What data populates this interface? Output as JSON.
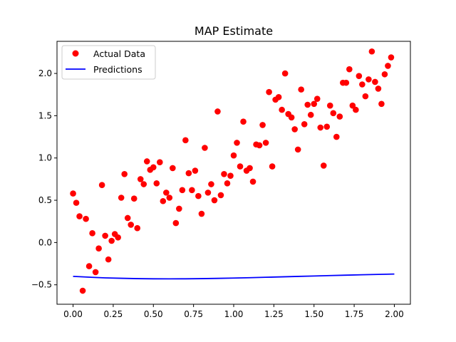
{
  "chart_data": {
    "type": "scatter",
    "title": "MAP Estimate",
    "xlabel": "",
    "ylabel": "",
    "xlim": [
      -0.1,
      2.1
    ],
    "ylim": [
      -0.73,
      2.38
    ],
    "xticks": [
      0.0,
      0.25,
      0.5,
      0.75,
      1.0,
      1.25,
      1.5,
      1.75,
      2.0
    ],
    "xtick_labels": [
      "0.00",
      "0.25",
      "0.50",
      "0.75",
      "1.00",
      "1.25",
      "1.50",
      "1.75",
      "2.00"
    ],
    "yticks": [
      -0.5,
      0.0,
      0.5,
      1.0,
      1.5,
      2.0
    ],
    "ytick_labels": [
      "−0.5",
      "0.0",
      "0.5",
      "1.0",
      "1.5",
      "2.0"
    ],
    "grid": false,
    "legend_position": "upper-left",
    "series": [
      {
        "name": "Actual Data",
        "kind": "scatter",
        "color": "#ff0000",
        "points": [
          [
            0.0,
            0.58
          ],
          [
            0.02,
            0.47
          ],
          [
            0.04,
            0.31
          ],
          [
            0.06,
            -0.57
          ],
          [
            0.08,
            0.28
          ],
          [
            0.1,
            -0.28
          ],
          [
            0.12,
            0.11
          ],
          [
            0.14,
            -0.35
          ],
          [
            0.16,
            -0.07
          ],
          [
            0.18,
            0.68
          ],
          [
            0.2,
            0.08
          ],
          [
            0.22,
            -0.2
          ],
          [
            0.24,
            0.02
          ],
          [
            0.26,
            0.1
          ],
          [
            0.28,
            0.06
          ],
          [
            0.3,
            0.53
          ],
          [
            0.32,
            0.81
          ],
          [
            0.34,
            0.29
          ],
          [
            0.36,
            0.21
          ],
          [
            0.38,
            0.52
          ],
          [
            0.4,
            0.17
          ],
          [
            0.42,
            0.75
          ],
          [
            0.44,
            0.69
          ],
          [
            0.46,
            0.96
          ],
          [
            0.48,
            0.86
          ],
          [
            0.5,
            0.89
          ],
          [
            0.52,
            0.7
          ],
          [
            0.54,
            0.95
          ],
          [
            0.56,
            0.49
          ],
          [
            0.58,
            0.59
          ],
          [
            0.6,
            0.53
          ],
          [
            0.62,
            0.88
          ],
          [
            0.64,
            0.23
          ],
          [
            0.66,
            0.4
          ],
          [
            0.68,
            0.62
          ],
          [
            0.7,
            1.21
          ],
          [
            0.72,
            0.82
          ],
          [
            0.74,
            0.62
          ],
          [
            0.76,
            0.85
          ],
          [
            0.78,
            0.55
          ],
          [
            0.8,
            0.34
          ],
          [
            0.82,
            1.12
          ],
          [
            0.84,
            0.59
          ],
          [
            0.86,
            0.69
          ],
          [
            0.88,
            0.5
          ],
          [
            0.9,
            1.55
          ],
          [
            0.92,
            0.56
          ],
          [
            0.94,
            0.81
          ],
          [
            0.96,
            0.7
          ],
          [
            0.98,
            0.79
          ],
          [
            1.0,
            1.03
          ],
          [
            1.02,
            1.18
          ],
          [
            1.04,
            0.9
          ],
          [
            1.06,
            1.43
          ],
          [
            1.08,
            0.85
          ],
          [
            1.1,
            0.88
          ],
          [
            1.12,
            0.72
          ],
          [
            1.14,
            1.16
          ],
          [
            1.16,
            1.15
          ],
          [
            1.18,
            1.39
          ],
          [
            1.2,
            1.18
          ],
          [
            1.22,
            1.78
          ],
          [
            1.24,
            0.9
          ],
          [
            1.26,
            1.69
          ],
          [
            1.28,
            1.72
          ],
          [
            1.3,
            1.57
          ],
          [
            1.32,
            2.0
          ],
          [
            1.34,
            1.52
          ],
          [
            1.36,
            1.48
          ],
          [
            1.38,
            1.34
          ],
          [
            1.4,
            1.1
          ],
          [
            1.42,
            1.81
          ],
          [
            1.44,
            1.4
          ],
          [
            1.46,
            1.63
          ],
          [
            1.48,
            1.51
          ],
          [
            1.5,
            1.64
          ],
          [
            1.52,
            1.7
          ],
          [
            1.54,
            1.36
          ],
          [
            1.56,
            0.91
          ],
          [
            1.58,
            1.37
          ],
          [
            1.6,
            1.62
          ],
          [
            1.62,
            1.53
          ],
          [
            1.64,
            1.25
          ],
          [
            1.66,
            1.49
          ],
          [
            1.68,
            1.89
          ],
          [
            1.7,
            1.89
          ],
          [
            1.72,
            2.05
          ],
          [
            1.74,
            1.62
          ],
          [
            1.76,
            1.57
          ],
          [
            1.78,
            1.97
          ],
          [
            1.8,
            1.87
          ],
          [
            1.82,
            1.73
          ],
          [
            1.84,
            1.93
          ],
          [
            1.86,
            2.26
          ],
          [
            1.88,
            1.9
          ],
          [
            1.9,
            1.82
          ],
          [
            1.92,
            1.64
          ],
          [
            1.94,
            1.99
          ],
          [
            1.96,
            2.09
          ],
          [
            1.98,
            2.19
          ]
        ]
      },
      {
        "name": "Predictions",
        "kind": "line",
        "color": "#0000ff",
        "points": [
          [
            0.0,
            -0.4
          ],
          [
            0.1,
            -0.41
          ],
          [
            0.2,
            -0.418
          ],
          [
            0.3,
            -0.423
          ],
          [
            0.4,
            -0.427
          ],
          [
            0.5,
            -0.429
          ],
          [
            0.6,
            -0.43
          ],
          [
            0.7,
            -0.429
          ],
          [
            0.8,
            -0.427
          ],
          [
            0.9,
            -0.424
          ],
          [
            1.0,
            -0.42
          ],
          [
            1.1,
            -0.416
          ],
          [
            1.2,
            -0.411
          ],
          [
            1.3,
            -0.406
          ],
          [
            1.4,
            -0.401
          ],
          [
            1.5,
            -0.396
          ],
          [
            1.6,
            -0.391
          ],
          [
            1.7,
            -0.386
          ],
          [
            1.8,
            -0.381
          ],
          [
            1.9,
            -0.377
          ],
          [
            2.0,
            -0.373
          ]
        ]
      }
    ]
  }
}
